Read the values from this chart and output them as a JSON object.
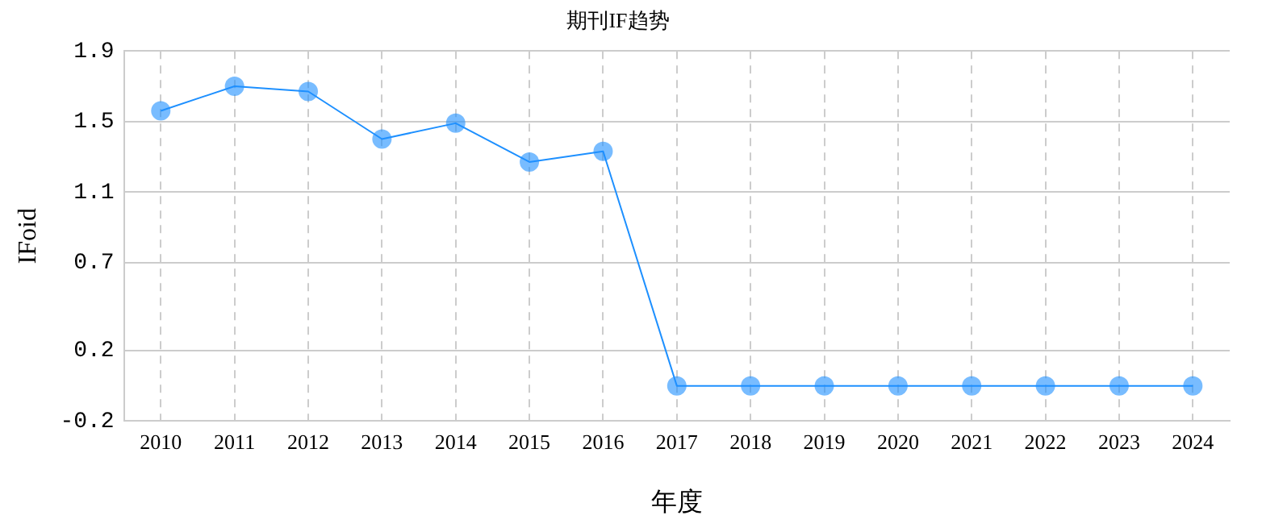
{
  "chart_data": {
    "type": "line",
    "title": "期刊IF趋势",
    "xlabel": "年度",
    "ylabel": "IFoid",
    "categories": [
      "2010",
      "2011",
      "2012",
      "2013",
      "2014",
      "2015",
      "2016",
      "2017",
      "2018",
      "2019",
      "2020",
      "2021",
      "2022",
      "2023",
      "2024"
    ],
    "series": [
      {
        "color": "#1e90ff",
        "values": [
          1.56,
          1.7,
          1.67,
          1.4,
          1.49,
          1.27,
          1.33,
          0,
          0,
          0,
          0,
          0,
          0,
          0,
          0
        ]
      }
    ],
    "ylim": [
      -0.2,
      1.9
    ],
    "yticks": [
      -0.2,
      0.2,
      0.7,
      1.1,
      1.5,
      1.9
    ],
    "grid": true,
    "marker": "circle",
    "line_style": "solid",
    "legend": false
  }
}
